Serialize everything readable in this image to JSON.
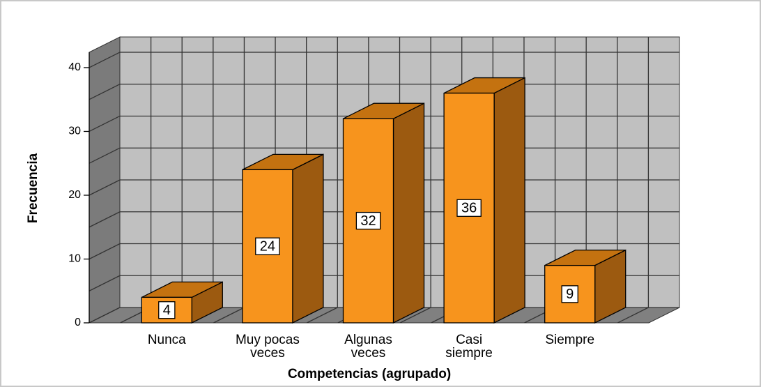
{
  "chart_data": {
    "type": "bar3d",
    "x_label": "Competencias (agrupado)",
    "y_label": "Frecuencia",
    "categories": [
      "Nunca",
      "Muy pocas\nveces",
      "Algunas\nveces",
      "Casi\nsiempre",
      "Siempre"
    ],
    "values": [
      4,
      24,
      32,
      36,
      9
    ],
    "color": "#f7941d",
    "ylim": [
      0,
      42.4
    ],
    "yticks": [
      0,
      10,
      20,
      30,
      40
    ],
    "grid": true
  }
}
